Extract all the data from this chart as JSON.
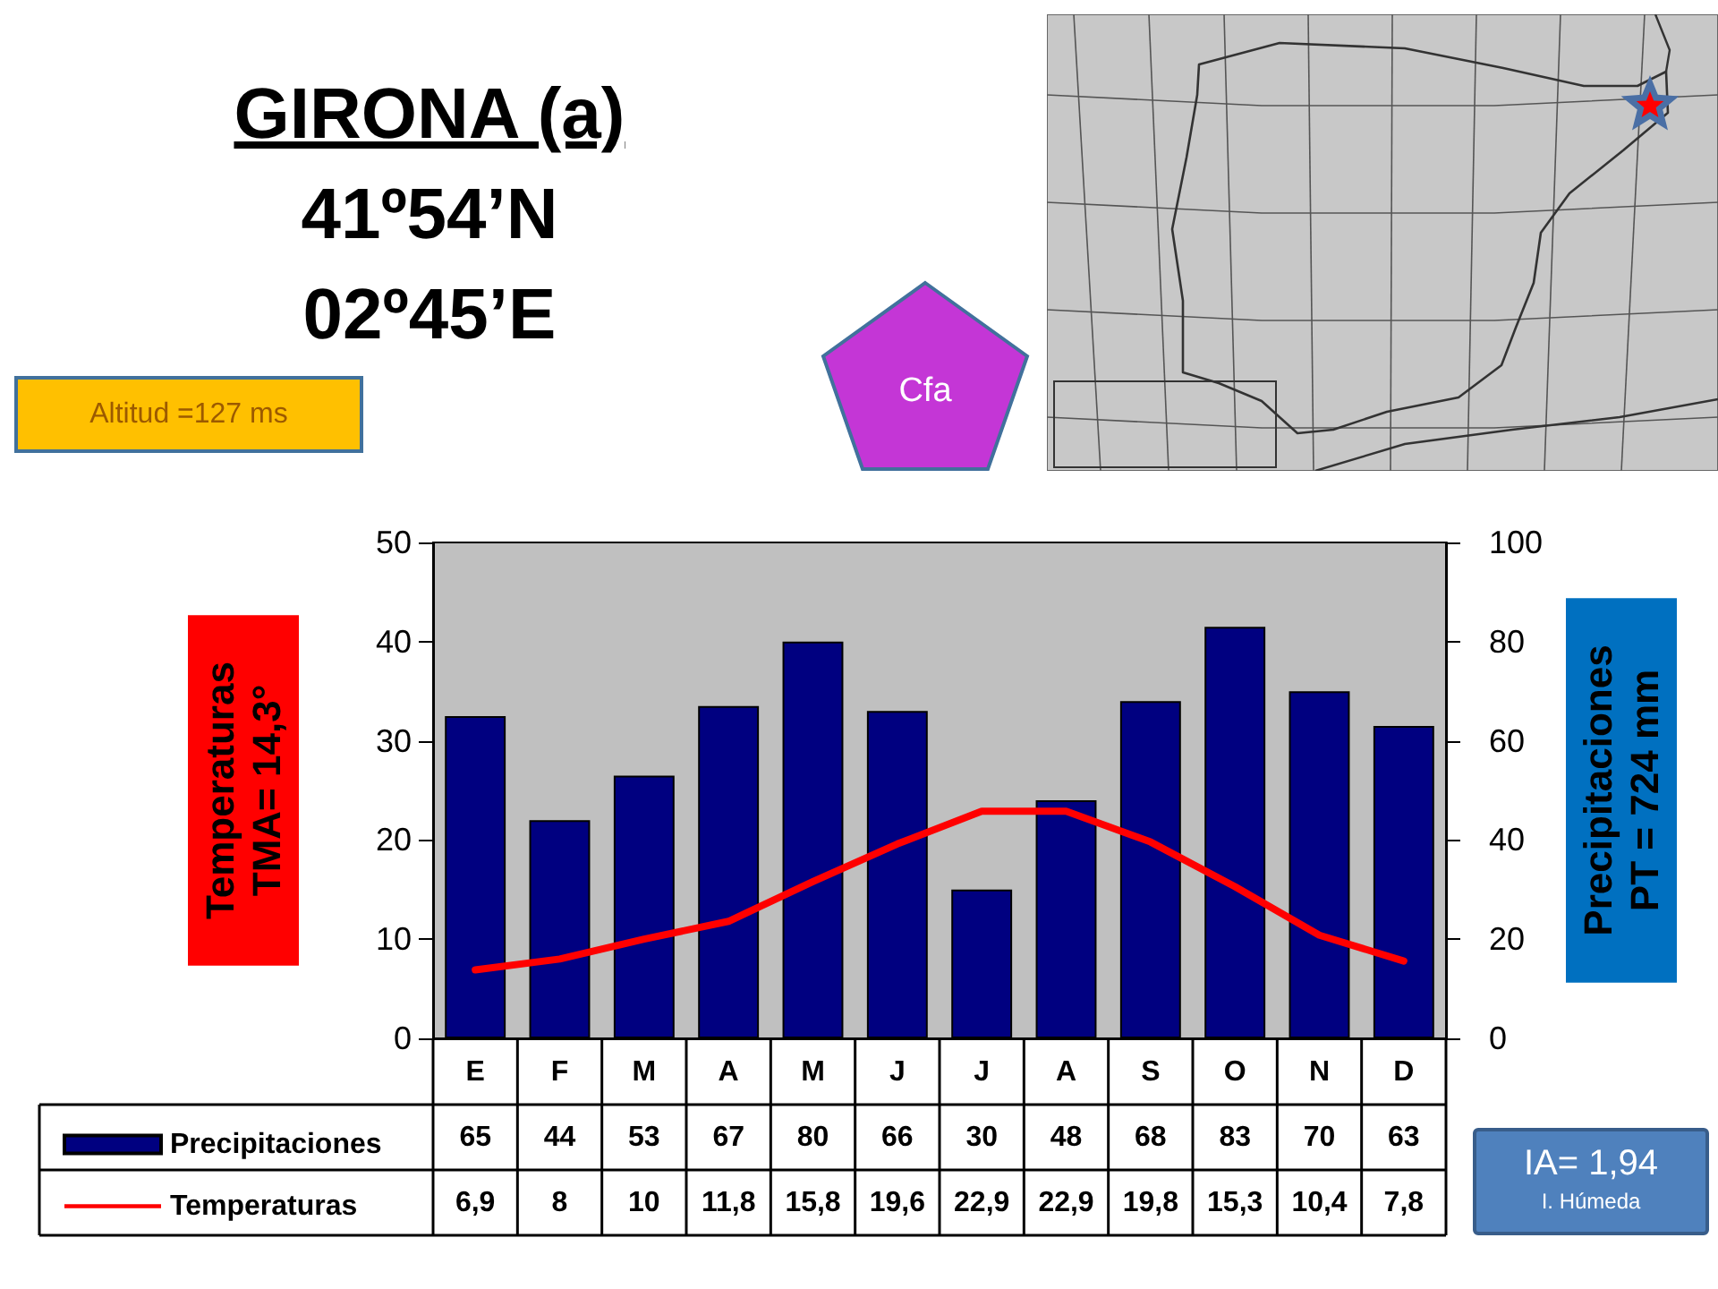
{
  "chart_data": {
    "type": "bar",
    "title": "GIRONA (a)",
    "subtitle": "41º54’N\n02º45’E",
    "ylabel": "Temperaturas\nTMA= 14,3°",
    "y2label": "Precipitaciones\nPT = 724 mm",
    "annotations": [
      "Altitud =127 ms",
      "Cfa",
      "IA= 1,94",
      "I. Húmeda"
    ],
    "categories": [
      "E",
      "F",
      "M",
      "A",
      "M",
      "J",
      "J",
      "A",
      "S",
      "O",
      "N",
      "D"
    ],
    "series": [
      {
        "name": "Precipitaciones",
        "axis": "y2",
        "color": "#000080",
        "values": [
          65,
          44,
          53,
          67,
          80,
          66,
          30,
          48,
          68,
          83,
          70,
          63
        ],
        "value_labels": [
          "65",
          "44",
          "53",
          "67",
          "80",
          "66",
          "30",
          "48",
          "68",
          "83",
          "70",
          "63"
        ]
      },
      {
        "name": "Temperaturas",
        "type": "line",
        "color": "#ff0000",
        "values": [
          6.9,
          8,
          10,
          11.8,
          15.8,
          19.6,
          22.9,
          22.9,
          19.8,
          15.3,
          10.4,
          7.8
        ],
        "value_labels": [
          "6,9",
          "8",
          "10",
          "11,8",
          "15,8",
          "19,6",
          "22,9",
          "22,9",
          "19,8",
          "15,3",
          "10,4",
          "7,8"
        ]
      }
    ],
    "ylim": [
      0,
      50
    ],
    "yticks": [
      0,
      10,
      20,
      30,
      40,
      50
    ],
    "y2lim": [
      0,
      100
    ],
    "y2ticks": [
      0,
      20,
      40,
      60,
      80,
      100
    ],
    "grid": false,
    "legend": "bottom left",
    "marker": "none",
    "line_style": "solid"
  }
}
